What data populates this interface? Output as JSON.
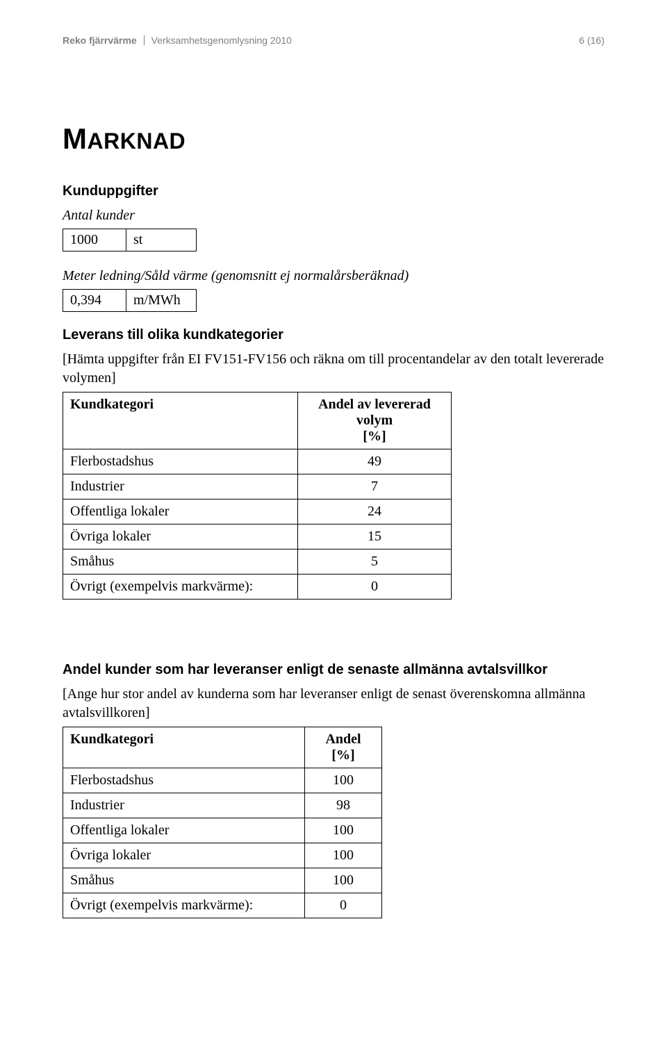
{
  "header": {
    "left1": "Reko fjärrvärme",
    "left2": "Verksamhetsgenomlysning 2010",
    "right": "6 (16)"
  },
  "title_big": "M",
  "title_rest": "ARKNAD",
  "section1": {
    "heading": "Kunduppgifter",
    "line1_label": "Antal kunder",
    "table1": {
      "value": "1000",
      "unit": "st"
    },
    "line2_label": "Meter ledning/Såld värme (genomsnitt ej normalårsberäknad)",
    "table2": {
      "value": "0,394",
      "unit": "m/MWh"
    }
  },
  "section2": {
    "heading": "Leverans till olika kundkategorier",
    "bracket_text": "[Hämta uppgifter från EI FV151-FV156 och räkna om till procentandelar av den totalt levererade volymen]",
    "col1": "Kundkategori",
    "col2_l1": "Andel av levererad volym",
    "col2_l2": "[%]",
    "rows": [
      {
        "label": "Flerbostadshus",
        "value": "49"
      },
      {
        "label": "Industrier",
        "value": "7"
      },
      {
        "label": "Offentliga lokaler",
        "value": "24"
      },
      {
        "label": "Övriga lokaler",
        "value": "15"
      },
      {
        "label": "Småhus",
        "value": "5"
      },
      {
        "label": "Övrigt (exempelvis markvärme):",
        "value": "0"
      }
    ]
  },
  "section3": {
    "heading": "Andel kunder som har leveranser enligt de senaste allmänna avtalsvillkor",
    "bracket_text": "[Ange hur stor andel av kunderna som har leveranser enligt de senast överenskomna allmänna avtalsvillkoren]",
    "col1": "Kundkategori",
    "col2_l1": "Andel",
    "col2_l2": "[%]",
    "rows": [
      {
        "label": "Flerbostadshus",
        "value": "100"
      },
      {
        "label": "Industrier",
        "value": "98"
      },
      {
        "label": "Offentliga lokaler",
        "value": "100"
      },
      {
        "label": "Övriga lokaler",
        "value": "100"
      },
      {
        "label": "Småhus",
        "value": "100"
      },
      {
        "label": "Övrigt (exempelvis markvärme):",
        "value": "0"
      }
    ]
  }
}
